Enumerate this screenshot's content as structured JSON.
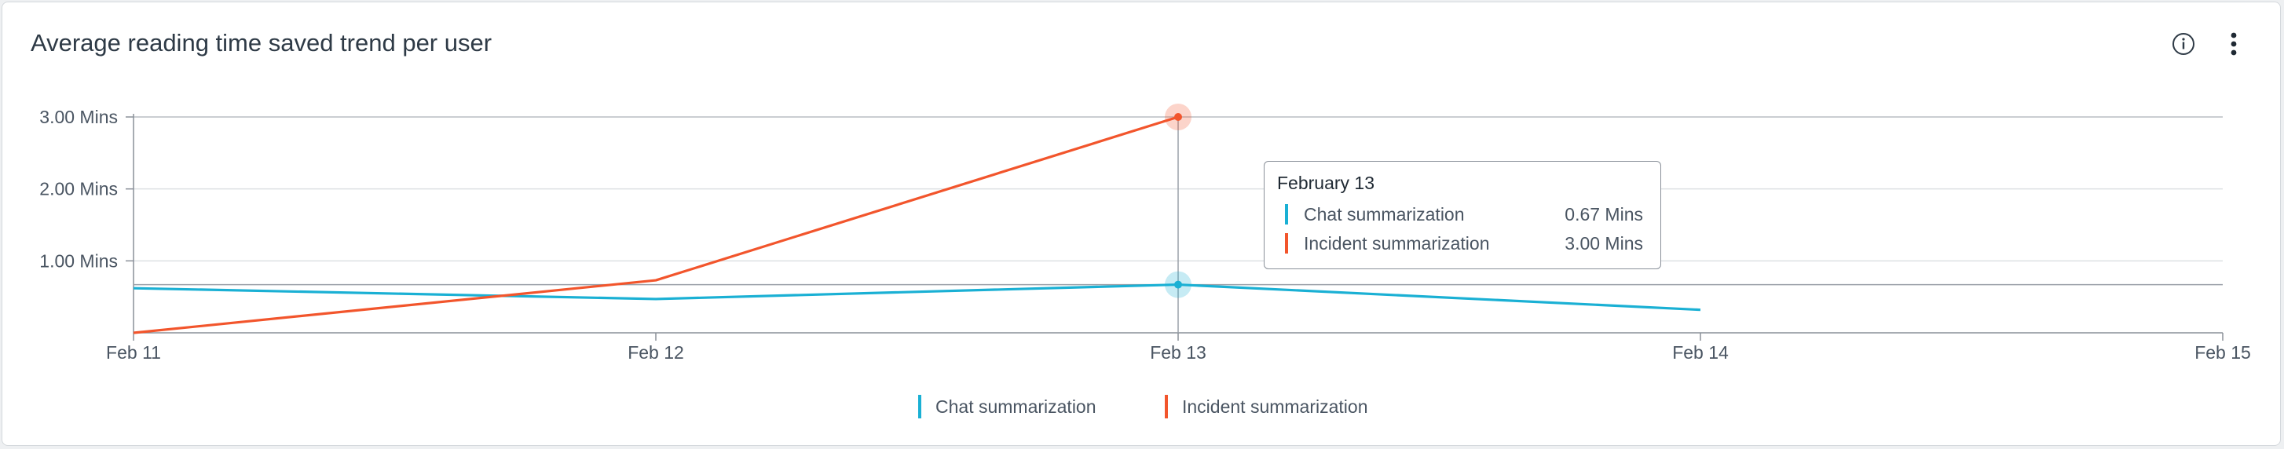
{
  "card": {
    "title": "Average reading time saved trend per user"
  },
  "icons": {
    "info": "info-circle-icon",
    "more": "more-vertical-icon"
  },
  "colors": {
    "chat": "#1ab0d4",
    "incident": "#f2552c"
  },
  "tooltip": {
    "title": "February 13",
    "rows": [
      {
        "name": "Chat summarization",
        "value": "0.67 Mins"
      },
      {
        "name": "Incident summarization",
        "value": "3.00 Mins"
      }
    ]
  },
  "legend": [
    {
      "label": "Chat summarization"
    },
    {
      "label": "Incident summarization"
    }
  ],
  "chart_data": {
    "type": "line",
    "x": [
      "Feb 11",
      "Feb 12",
      "Feb 13",
      "Feb 14",
      "Feb 15"
    ],
    "y_ticks": [
      "1.00 Mins",
      "2.00 Mins",
      "3.00 Mins"
    ],
    "ylim": [
      0,
      3
    ],
    "grid": true,
    "legend_position": "bottom-center",
    "highlighted_x": "Feb 13",
    "series": [
      {
        "name": "Chat summarization",
        "values": [
          0.62,
          0.47,
          0.67,
          0.32,
          null
        ]
      },
      {
        "name": "Incident summarization",
        "values": [
          0.0,
          0.73,
          3.0,
          null,
          null
        ]
      }
    ]
  }
}
